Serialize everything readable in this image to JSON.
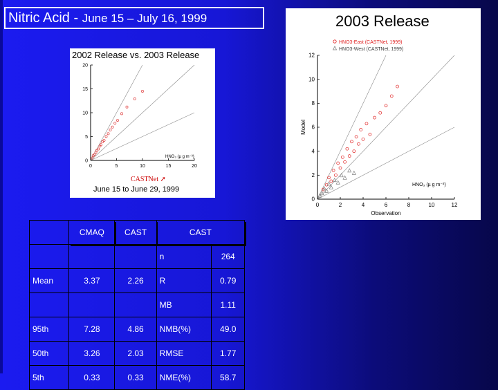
{
  "slide": {
    "title_main": "Nitric Acid - ",
    "title_dates": "June 15 – July 16, 1999"
  },
  "panel_2002": {
    "title": "2002 Release vs. 2003 Release",
    "cast_label": "CASTNet",
    "caption": "June 15 to June 29, 1999",
    "axis_unit": "HNO₃ (µ g m⁻³)",
    "ticks": [
      "0",
      "5",
      "10",
      "15",
      "20"
    ]
  },
  "panel_2003": {
    "title": "2003 Release",
    "legend": [
      "HNO3-East (CASTNet, 1999)",
      "HNO3-West (CASTNet, 1999)"
    ],
    "xlabel": "Observation",
    "ylabel": "Model",
    "unit_label": "HNO₃ (µ g m⁻³)",
    "ticks": [
      "0",
      "2",
      "4",
      "6",
      "8",
      "10",
      "12"
    ]
  },
  "chart_data": [
    {
      "type": "scatter",
      "title": "2002 Release vs. 2003 Release",
      "xlabel": "HNO3 (µ g m-3)",
      "xlim": [
        0,
        20
      ],
      "ylim": [
        0,
        20
      ],
      "reference_lines": [
        "1:1",
        "2:1",
        "1:2"
      ],
      "series": [
        {
          "values_note": "",
          "x": [
            0.3,
            0.5,
            0.8,
            1.0,
            1.2,
            1.5,
            1.8,
            2.0,
            2.3,
            2.6,
            3.0,
            3.4,
            3.8,
            4.2,
            4.7,
            5.2,
            6.0,
            7.0,
            8.5,
            10.0
          ],
          "y": [
            0.5,
            1.0,
            1.3,
            1.7,
            2.1,
            2.4,
            3.0,
            3.3,
            3.9,
            4.2,
            5.0,
            5.6,
            6.4,
            7.0,
            7.8,
            8.4,
            9.8,
            11.2,
            12.9,
            14.5
          ]
        }
      ]
    },
    {
      "type": "scatter",
      "title": "2003 Release",
      "xlabel": "Observation",
      "ylabel": "Model",
      "xlim": [
        0,
        12
      ],
      "ylim": [
        0,
        12
      ],
      "reference_lines": [
        "1:1",
        "2:1",
        "1:2"
      ],
      "legend_position": "top-right",
      "series": [
        {
          "name": "HNO3-East (CASTNet, 1999)",
          "color": "#e02020",
          "x": [
            0.5,
            0.8,
            1.0,
            1.2,
            1.4,
            1.6,
            1.8,
            2.0,
            2.2,
            2.4,
            2.6,
            2.8,
            3.0,
            3.2,
            3.4,
            3.6,
            3.8,
            4.0,
            4.3,
            4.6,
            5.0,
            5.5,
            6.0,
            6.5,
            7.0
          ],
          "y": [
            0.8,
            1.2,
            1.8,
            1.5,
            2.4,
            2.0,
            3.0,
            2.6,
            3.5,
            3.1,
            4.2,
            3.6,
            4.8,
            4.0,
            5.2,
            4.6,
            5.8,
            5.0,
            6.3,
            5.4,
            6.8,
            7.2,
            7.8,
            8.6,
            9.4
          ]
        },
        {
          "name": "HNO3-West (CASTNet, 1999)",
          "color": "#808080",
          "x": [
            0.2,
            0.4,
            0.6,
            0.8,
            1.0,
            1.2,
            1.5,
            1.8,
            2.1,
            2.4,
            2.8,
            3.2
          ],
          "y": [
            0.3,
            0.5,
            0.9,
            0.7,
            1.3,
            1.0,
            1.6,
            1.4,
            2.0,
            1.8,
            2.4,
            2.2
          ]
        }
      ]
    }
  ],
  "table": {
    "header": [
      "",
      "CMAQ",
      "CAST",
      "CAST"
    ],
    "rows": [
      [
        "",
        "",
        "",
        "n",
        "264"
      ],
      [
        "Mean",
        "3.37",
        "2.26",
        "R",
        "0.79"
      ],
      [
        "",
        "",
        "",
        "MB",
        "1.11"
      ],
      [
        "95th",
        "7.28",
        "4.86",
        "NMB(%)",
        "49.0"
      ],
      [
        "50th",
        "3.26",
        "2.03",
        "RMSE",
        "1.77"
      ],
      [
        "5th",
        "0.33",
        "0.33",
        "NME(%)",
        "58.7"
      ]
    ]
  }
}
